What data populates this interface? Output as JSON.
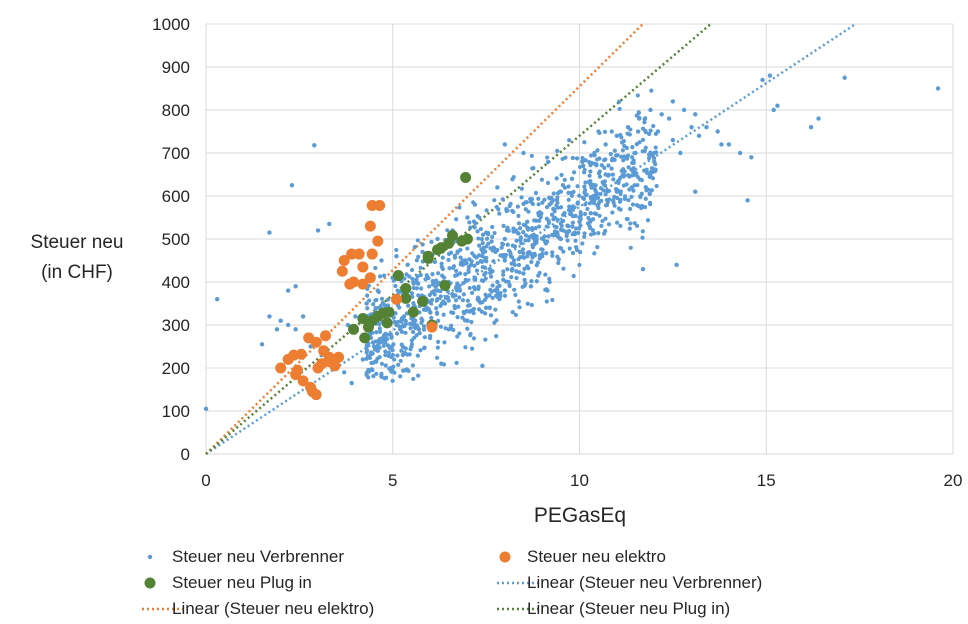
{
  "chart_data": {
    "type": "scatter",
    "xlabel": "PEGasEq",
    "ylabel": [
      "Steuer neu",
      "(in CHF)"
    ],
    "xlim": [
      0,
      20
    ],
    "ylim": [
      0,
      1000
    ],
    "x_ticks": [
      0,
      5,
      10,
      15,
      20
    ],
    "y_ticks": [
      0,
      100,
      200,
      300,
      400,
      500,
      600,
      700,
      800,
      900,
      1000
    ],
    "grid": true,
    "legend_position": "bottom",
    "series": [
      {
        "name": "Steuer neu Verbrenner",
        "color": "#5B9BD5",
        "marker": "small-dot",
        "cluster_note": "dense cloud of about 1400 vehicles approximated by representative points",
        "points": [
          [
            0,
            105
          ],
          [
            0.3,
            360
          ],
          [
            1.7,
            515
          ],
          [
            2.3,
            625
          ],
          [
            2.9,
            718
          ],
          [
            3.3,
            535
          ],
          [
            3.0,
            520
          ],
          [
            1.5,
            255
          ],
          [
            1.7,
            320
          ],
          [
            2.0,
            310
          ],
          [
            2.2,
            300
          ],
          [
            2.4,
            290
          ],
          [
            2.6,
            320
          ],
          [
            1.9,
            290
          ],
          [
            2.2,
            380
          ],
          [
            2.4,
            390
          ],
          [
            2.7,
            270
          ],
          [
            2.8,
            250
          ],
          [
            3.1,
            230
          ],
          [
            3.5,
            205
          ],
          [
            3.7,
            190
          ],
          [
            3.9,
            165
          ],
          [
            4.2,
            220
          ],
          [
            4.5,
            250
          ],
          [
            4.8,
            270
          ],
          [
            5.1,
            300
          ],
          [
            5.3,
            320
          ],
          [
            5.6,
            340
          ],
          [
            5.9,
            360
          ],
          [
            6.2,
            380
          ],
          [
            6.5,
            400
          ],
          [
            6.8,
            420
          ],
          [
            7.1,
            440
          ],
          [
            7.4,
            460
          ],
          [
            7.7,
            480
          ],
          [
            8.0,
            500
          ],
          [
            8.3,
            520
          ],
          [
            8.6,
            540
          ],
          [
            8.9,
            560
          ],
          [
            9.2,
            580
          ],
          [
            9.5,
            610
          ],
          [
            9.8,
            640
          ],
          [
            10.1,
            670
          ],
          [
            10.4,
            700
          ],
          [
            10.7,
            720
          ],
          [
            11.0,
            740
          ],
          [
            11.3,
            760
          ],
          [
            11.6,
            780
          ],
          [
            11.9,
            800
          ],
          [
            12.2,
            790
          ],
          [
            12.5,
            820
          ],
          [
            12.8,
            800
          ],
          [
            13.1,
            790
          ],
          [
            13.4,
            760
          ],
          [
            13.7,
            750
          ],
          [
            14.0,
            720
          ],
          [
            14.3,
            700
          ],
          [
            14.6,
            690
          ],
          [
            14.9,
            870
          ],
          [
            15.1,
            880
          ],
          [
            15.3,
            810
          ],
          [
            15.2,
            800
          ],
          [
            16.2,
            760
          ],
          [
            16.4,
            780
          ],
          [
            17.1,
            875
          ],
          [
            19.6,
            850
          ],
          [
            12.6,
            440
          ],
          [
            11.7,
            430
          ],
          [
            9.3,
            570
          ],
          [
            13.1,
            610
          ],
          [
            14.5,
            590
          ],
          [
            10.7,
            650
          ],
          [
            11.4,
            620
          ],
          [
            12.0,
            680
          ],
          [
            12.7,
            700
          ],
          [
            13.8,
            720
          ],
          [
            10.0,
            550
          ],
          [
            9.6,
            560
          ],
          [
            8.8,
            500
          ],
          [
            8.4,
            470
          ],
          [
            8.0,
            450
          ],
          [
            7.6,
            430
          ],
          [
            7.2,
            410
          ],
          [
            6.8,
            380
          ],
          [
            6.4,
            350
          ],
          [
            6.0,
            330
          ],
          [
            5.6,
            310
          ],
          [
            5.2,
            290
          ],
          [
            4.8,
            260
          ],
          [
            4.6,
            240
          ],
          [
            5.0,
            230
          ],
          [
            5.5,
            250
          ],
          [
            6.0,
            270
          ],
          [
            6.5,
            290
          ],
          [
            7.0,
            310
          ],
          [
            7.5,
            340
          ],
          [
            8.0,
            380
          ],
          [
            8.5,
            420
          ],
          [
            9.0,
            460
          ],
          [
            9.5,
            500
          ],
          [
            10.0,
            540
          ],
          [
            10.5,
            580
          ],
          [
            11.0,
            610
          ],
          [
            11.5,
            650
          ],
          [
            12.0,
            700
          ],
          [
            12.5,
            730
          ],
          [
            13.0,
            760
          ],
          [
            6.3,
            210
          ],
          [
            7.4,
            205
          ],
          [
            8.7,
            390
          ],
          [
            9.2,
            400
          ],
          [
            7.0,
            550
          ],
          [
            6.6,
            520
          ],
          [
            6.2,
            500
          ],
          [
            5.8,
            470
          ],
          [
            5.4,
            440
          ],
          [
            5.0,
            410
          ],
          [
            4.6,
            380
          ],
          [
            4.3,
            350
          ],
          [
            4.0,
            320
          ],
          [
            3.8,
            300
          ],
          [
            4.4,
            280
          ],
          [
            5.7,
            290
          ],
          [
            6.1,
            300
          ],
          [
            6.9,
            330
          ],
          [
            7.3,
            360
          ],
          [
            7.8,
            400
          ],
          [
            8.2,
            430
          ],
          [
            8.6,
            460
          ],
          [
            9.1,
            490
          ],
          [
            9.7,
            530
          ],
          [
            10.3,
            560
          ],
          [
            10.9,
            590
          ],
          [
            11.5,
            700
          ],
          [
            12.1,
            750
          ],
          [
            12.4,
            780
          ],
          [
            13.2,
            740
          ],
          [
            8.0,
            720
          ],
          [
            8.5,
            700
          ],
          [
            7.2,
            580
          ],
          [
            7.8,
            620
          ],
          [
            5.1,
            460
          ],
          [
            4.7,
            450
          ]
        ]
      },
      {
        "name": "Steuer neu elektro",
        "color": "#ED7D31",
        "marker": "large-dot",
        "points": [
          [
            4.45,
            578
          ],
          [
            4.65,
            578
          ],
          [
            4.4,
            530
          ],
          [
            4.6,
            495
          ],
          [
            4.1,
            465
          ],
          [
            3.9,
            465
          ],
          [
            3.7,
            450
          ],
          [
            3.65,
            425
          ],
          [
            4.2,
            435
          ],
          [
            4.45,
            465
          ],
          [
            4.4,
            410
          ],
          [
            3.95,
            400
          ],
          [
            4.2,
            395
          ],
          [
            3.85,
            395
          ],
          [
            3.2,
            275
          ],
          [
            2.75,
            270
          ],
          [
            2.95,
            260
          ],
          [
            2.0,
            200
          ],
          [
            2.2,
            220
          ],
          [
            2.35,
            230
          ],
          [
            2.55,
            232
          ],
          [
            2.45,
            195
          ],
          [
            2.4,
            185
          ],
          [
            2.6,
            170
          ],
          [
            2.8,
            155
          ],
          [
            2.85,
            145
          ],
          [
            2.95,
            138
          ],
          [
            3.1,
            210
          ],
          [
            3.3,
            225
          ],
          [
            3.55,
            225
          ],
          [
            3.15,
            240
          ],
          [
            3.45,
            205
          ],
          [
            5.1,
            360
          ],
          [
            6.05,
            295
          ],
          [
            3.0,
            200
          ],
          [
            3.3,
            215
          ]
        ]
      },
      {
        "name": "Steuer neu Plug in",
        "color": "#548235",
        "marker": "large-dot",
        "points": [
          [
            6.95,
            643
          ],
          [
            6.6,
            508
          ],
          [
            6.5,
            490
          ],
          [
            7.0,
            500
          ],
          [
            6.85,
            495
          ],
          [
            6.2,
            475
          ],
          [
            6.3,
            480
          ],
          [
            5.95,
            460
          ],
          [
            5.95,
            455
          ],
          [
            5.15,
            415
          ],
          [
            6.4,
            392
          ],
          [
            5.35,
            385
          ],
          [
            5.55,
            330
          ],
          [
            5.8,
            355
          ],
          [
            4.9,
            330
          ],
          [
            4.6,
            320
          ],
          [
            4.75,
            328
          ],
          [
            4.85,
            305
          ],
          [
            5.35,
            362
          ],
          [
            4.2,
            315
          ],
          [
            4.35,
            295
          ],
          [
            3.95,
            290
          ],
          [
            4.25,
            270
          ],
          [
            4.45,
            310
          ],
          [
            6.05,
            300
          ]
        ]
      }
    ],
    "trendlines": [
      {
        "name": "Linear (Steuer neu Verbrenner)",
        "color": "#5B9BD5",
        "slope": 57.5,
        "intercept": 0
      },
      {
        "name": "Linear (Steuer neu elektro)",
        "color": "#ED7D31",
        "slope": 85.5,
        "intercept": 0
      },
      {
        "name": "Linear (Steuer neu Plug in)",
        "color": "#548235",
        "slope": 74,
        "intercept": 0
      }
    ]
  },
  "legend": {
    "items": [
      {
        "label": "Steuer neu Verbrenner",
        "symbol": "small-dot",
        "color": "#5B9BD5"
      },
      {
        "label": "Steuer neu elektro",
        "symbol": "large-dot",
        "color": "#ED7D31"
      },
      {
        "label": "Steuer neu Plug in",
        "symbol": "large-dot",
        "color": "#548235"
      },
      {
        "label": "Linear (Steuer neu Verbrenner)",
        "symbol": "dotted-line",
        "color": "#5B9BD5"
      },
      {
        "label": "Linear (Steuer neu elektro)",
        "symbol": "dotted-line",
        "color": "#ED7D31"
      },
      {
        "label": "Linear (Steuer neu Plug in)",
        "symbol": "dotted-line",
        "color": "#548235"
      }
    ]
  }
}
